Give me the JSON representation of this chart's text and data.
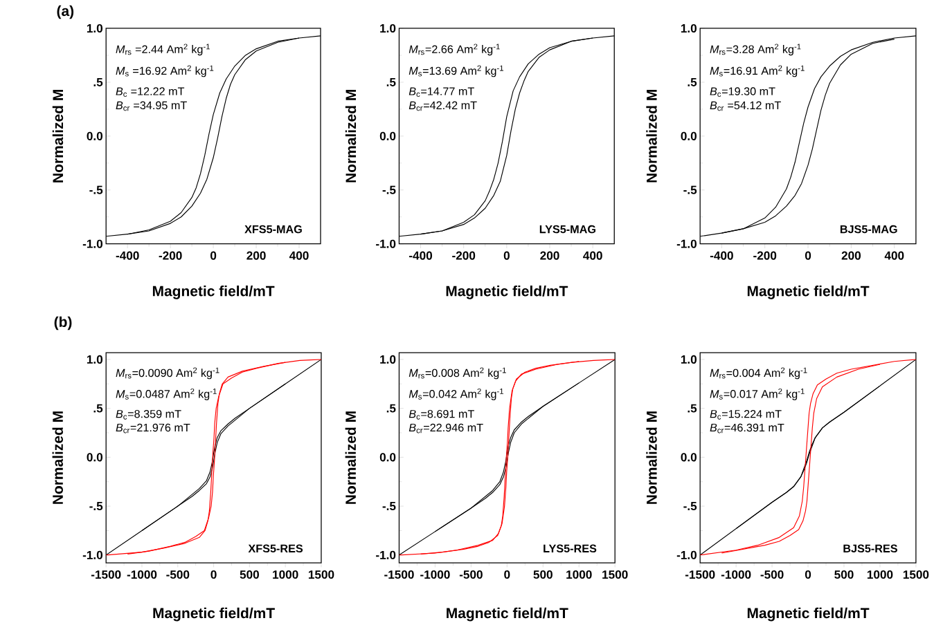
{
  "chart_data": [
    {
      "type": "line",
      "title": "(a)",
      "xlabel": "Magnetic field/mT",
      "ylabel": "Normalized M",
      "xlim": [
        -500,
        500
      ],
      "ylim": [
        -1,
        1
      ],
      "xticks": [
        -400,
        -200,
        0,
        200,
        400,
        {
          "value": -300,
          "label": null
        },
        {
          "value": -100,
          "label": null
        },
        {
          "value": 100,
          "label": null
        },
        {
          "value": 300,
          "label": null
        }
      ],
      "yticks": [
        {
          "value": -1,
          "label": "-1.0"
        },
        {
          "value": -0.5,
          "label": "-.5"
        },
        {
          "value": 0,
          "label": "0.0"
        },
        {
          "value": 0.5,
          "label": ".5"
        },
        {
          "value": 1,
          "label": "1.0"
        },
        {
          "value": -0.75,
          "label": null
        },
        {
          "value": -0.25,
          "label": null
        },
        {
          "value": 0.25,
          "label": null
        },
        {
          "value": 0.75,
          "label": null
        }
      ],
      "annotations": [
        "*M*$_{rs}$ =2.44 Am$^{2}$ kg$^{-1}$",
        "*M*$_{s}$ =16.92 Am$^{2}$ kg$^{-1}$",
        "*B*$_{c}$ =12.22 mT",
        "*B*$_{cr}$ =34.95 mT",
        "XFS5-MAG"
      ],
      "series": [
        {
          "color": "#000000",
          "x": [
            500,
            400,
            300,
            200,
            150,
            100,
            60,
            30,
            0,
            -20,
            -40,
            -60,
            -80,
            -100,
            -150,
            -200,
            -300,
            -400,
            -500
          ],
          "values": [
            0.93,
            0.91,
            0.88,
            0.81,
            0.75,
            0.65,
            0.53,
            0.4,
            0.2,
            0.02,
            -0.18,
            -0.35,
            -0.48,
            -0.57,
            -0.71,
            -0.79,
            -0.87,
            -0.91,
            -0.93
          ]
        },
        {
          "color": "#000000",
          "x": [
            -400,
            -300,
            -200,
            -150,
            -100,
            -60,
            -30,
            0,
            20,
            40,
            60,
            80,
            100,
            150,
            200,
            300,
            400
          ],
          "values": [
            -0.91,
            -0.88,
            -0.81,
            -0.75,
            -0.65,
            -0.53,
            -0.4,
            -0.2,
            -0.02,
            0.18,
            0.35,
            0.48,
            0.57,
            0.71,
            0.79,
            0.87,
            0.91
          ]
        }
      ]
    },
    {
      "type": "line",
      "xlabel": "Magnetic field/mT",
      "ylabel": "Normalized M",
      "xlim": [
        -500,
        500
      ],
      "ylim": [
        -1,
        1
      ],
      "xticks": [
        -400,
        -200,
        0,
        200,
        400,
        {
          "value": -300,
          "label": null
        },
        {
          "value": -100,
          "label": null
        },
        {
          "value": 100,
          "label": null
        },
        {
          "value": 300,
          "label": null
        }
      ],
      "yticks": [
        {
          "value": -1,
          "label": "-1.0"
        },
        {
          "value": -0.5,
          "label": "-.5"
        },
        {
          "value": 0,
          "label": "0.0"
        },
        {
          "value": 0.5,
          "label": ".5"
        },
        {
          "value": 1,
          "label": "1.0"
        },
        {
          "value": -0.75,
          "label": null
        },
        {
          "value": -0.25,
          "label": null
        },
        {
          "value": 0.25,
          "label": null
        },
        {
          "value": 0.75,
          "label": null
        }
      ],
      "annotations": [
        "*M*$_{rs}$=2.66 Am$^{2}$ kg$^{-1}$",
        "*M*$_{s}$=13.69 Am$^{2}$ kg$^{-1}$",
        "*B*$_{c}$=14.77 mT",
        "*B*$_{cr}$=42.42 mT",
        "LYS5-MAG"
      ],
      "series": [
        {
          "color": "#000000",
          "x": [
            500,
            400,
            300,
            200,
            150,
            100,
            60,
            30,
            0,
            -20,
            -40,
            -60,
            -80,
            -100,
            -150,
            -200,
            -300,
            -400,
            -500
          ],
          "values": [
            0.93,
            0.91,
            0.88,
            0.82,
            0.76,
            0.67,
            0.55,
            0.42,
            0.18,
            -0.05,
            -0.25,
            -0.4,
            -0.51,
            -0.6,
            -0.73,
            -0.8,
            -0.88,
            -0.91,
            -0.93
          ]
        },
        {
          "color": "#000000",
          "x": [
            -400,
            -300,
            -200,
            -150,
            -100,
            -60,
            -30,
            0,
            20,
            40,
            60,
            80,
            100,
            150,
            200,
            300,
            400
          ],
          "values": [
            -0.91,
            -0.88,
            -0.82,
            -0.76,
            -0.67,
            -0.55,
            -0.42,
            -0.18,
            0.05,
            0.25,
            0.4,
            0.51,
            0.6,
            0.73,
            0.8,
            0.88,
            0.91
          ]
        }
      ]
    },
    {
      "type": "line",
      "xlabel": "Magnetic field/mT",
      "ylabel": "Normalized M",
      "xlim": [
        -500,
        500
      ],
      "ylim": [
        -1,
        1
      ],
      "xticks": [
        -400,
        -200,
        0,
        200,
        400,
        {
          "value": -300,
          "label": null
        },
        {
          "value": -100,
          "label": null
        },
        {
          "value": 100,
          "label": null
        },
        {
          "value": 300,
          "label": null
        }
      ],
      "yticks": [
        {
          "value": -1,
          "label": "-1.0"
        },
        {
          "value": -0.5,
          "label": "-.5"
        },
        {
          "value": 0,
          "label": "0.0"
        },
        {
          "value": 0.5,
          "label": ".5"
        },
        {
          "value": 1,
          "label": "1.0"
        },
        {
          "value": -0.75,
          "label": null
        },
        {
          "value": -0.25,
          "label": null
        },
        {
          "value": 0.25,
          "label": null
        },
        {
          "value": 0.75,
          "label": null
        }
      ],
      "annotations": [
        "*M*$_{rs}$=3.28 Am$^{2}$ kg$^{-1}$",
        "*M*$_{s}$=16.91 Am$^{2}$ kg$^{-1}$",
        "*B*$_{c}$=19.30 mT",
        "*B*$_{cr}$ =54.12 mT",
        "BJS5-MAG"
      ],
      "series": [
        {
          "color": "#000000",
          "x": [
            500,
            400,
            300,
            200,
            150,
            100,
            60,
            30,
            0,
            -20,
            -40,
            -60,
            -80,
            -100,
            -150,
            -200,
            -300,
            -400,
            -500
          ],
          "values": [
            0.93,
            0.91,
            0.87,
            0.8,
            0.74,
            0.65,
            0.55,
            0.44,
            0.27,
            0.12,
            -0.06,
            -0.24,
            -0.38,
            -0.49,
            -0.66,
            -0.76,
            -0.86,
            -0.9,
            -0.93
          ]
        },
        {
          "color": "#000000",
          "x": [
            -400,
            -300,
            -200,
            -150,
            -100,
            -60,
            -30,
            0,
            20,
            40,
            60,
            80,
            100,
            150,
            200,
            300,
            400
          ],
          "values": [
            -0.9,
            -0.86,
            -0.8,
            -0.74,
            -0.65,
            -0.55,
            -0.44,
            -0.27,
            -0.12,
            0.06,
            0.24,
            0.38,
            0.49,
            0.66,
            0.76,
            0.86,
            0.9
          ]
        }
      ]
    },
    {
      "type": "line",
      "title": "(b)",
      "xlabel": "Magnetic field/mT",
      "ylabel": "Normalized M",
      "xlim": [
        -1500,
        1500
      ],
      "ylim": [
        -1.08,
        1.07
      ],
      "xticks": [
        -1500,
        -1000,
        -500,
        0,
        500,
        1000,
        1500,
        {
          "value": -1250,
          "label": null
        },
        {
          "value": -750,
          "label": null
        },
        {
          "value": -250,
          "label": null
        },
        {
          "value": 250,
          "label": null
        },
        {
          "value": 750,
          "label": null
        },
        {
          "value": 1250,
          "label": null
        }
      ],
      "yticks": [
        {
          "value": -1,
          "label": "-1.0"
        },
        {
          "value": -0.5,
          "label": "-.5"
        },
        {
          "value": 0,
          "label": "0.0"
        },
        {
          "value": 0.5,
          "label": ".5"
        },
        {
          "value": 1,
          "label": "1.0"
        },
        {
          "value": -0.75,
          "label": null
        },
        {
          "value": -0.25,
          "label": null
        },
        {
          "value": 0.25,
          "label": null
        },
        {
          "value": 0.75,
          "label": null
        }
      ],
      "annotations": [
        "*M*$_{rs}$=0.0090 Am$^{2}$ kg$^{-1}$",
        "*M*$_{s}$=0.0487 Am$^{2}$ kg$^{-1}$",
        "*B*$_{c}$=8.359 mT",
        "*B*$_{cr}$=21.976 mT",
        "XFS5-RES"
      ],
      "series": [
        {
          "color": "#000000",
          "x": [
            1500,
            1000,
            500,
            300,
            200,
            100,
            50,
            20,
            0,
            -20,
            -50,
            -100,
            -200,
            -300,
            -500,
            -1000,
            -1500
          ],
          "values": [
            1.0,
            0.75,
            0.5,
            0.4,
            0.34,
            0.27,
            0.2,
            0.12,
            0.04,
            -0.05,
            -0.15,
            -0.24,
            -0.32,
            -0.38,
            -0.5,
            -0.75,
            -1.0
          ]
        },
        {
          "color": "#000000",
          "x": [
            -1000,
            -500,
            -300,
            -200,
            -100,
            -50,
            -20,
            0,
            20,
            50,
            100,
            200,
            300,
            500,
            1000
          ],
          "values": [
            -0.75,
            -0.5,
            -0.4,
            -0.34,
            -0.27,
            -0.2,
            -0.12,
            -0.04,
            0.05,
            0.15,
            0.24,
            0.32,
            0.38,
            0.5,
            0.75
          ]
        },
        {
          "color": "#ff0000",
          "x": [
            1500,
            1200,
            900,
            600,
            400,
            250,
            130,
            70,
            35,
            15,
            5,
            -10,
            -25,
            -40,
            -60,
            -80,
            -120,
            -200,
            -400,
            -700,
            -1000,
            -1500
          ],
          "values": [
            1.0,
            0.99,
            0.96,
            0.91,
            0.87,
            0.81,
            0.75,
            0.62,
            0.5,
            0.35,
            0.2,
            0.05,
            -0.15,
            -0.35,
            -0.55,
            -0.65,
            -0.75,
            -0.82,
            -0.88,
            -0.93,
            -0.97,
            -1.0
          ]
        },
        {
          "color": "#ff0000",
          "x": [
            -1200,
            -900,
            -600,
            -400,
            -250,
            -130,
            -70,
            -35,
            -15,
            -5,
            10,
            25,
            40,
            60,
            80,
            120,
            200,
            400,
            700,
            1000
          ],
          "values": [
            -0.99,
            -0.96,
            -0.91,
            -0.87,
            -0.81,
            -0.75,
            -0.62,
            -0.5,
            -0.35,
            -0.2,
            -0.05,
            0.15,
            0.35,
            0.55,
            0.65,
            0.75,
            0.82,
            0.88,
            0.93,
            0.97
          ]
        }
      ]
    },
    {
      "type": "line",
      "xlabel": "Magnetic field/mT",
      "ylabel": "Normalized M",
      "xlim": [
        -1500,
        1500
      ],
      "ylim": [
        -1.08,
        1.07
      ],
      "xticks": [
        -1500,
        -1000,
        -500,
        0,
        500,
        1000,
        1500,
        {
          "value": -1250,
          "label": null
        },
        {
          "value": -750,
          "label": null
        },
        {
          "value": -250,
          "label": null
        },
        {
          "value": 250,
          "label": null
        },
        {
          "value": 750,
          "label": null
        },
        {
          "value": 1250,
          "label": null
        }
      ],
      "yticks": [
        {
          "value": -1,
          "label": "-1.0"
        },
        {
          "value": -0.5,
          "label": "-.5"
        },
        {
          "value": 0,
          "label": "0.0"
        },
        {
          "value": 0.5,
          "label": ".5"
        },
        {
          "value": 1,
          "label": "1.0"
        },
        {
          "value": -0.75,
          "label": null
        },
        {
          "value": -0.25,
          "label": null
        },
        {
          "value": 0.25,
          "label": null
        },
        {
          "value": 0.75,
          "label": null
        }
      ],
      "annotations": [
        "*M*$_{rs}$=0.008 Am$^{2}$ kg$^{-1}$",
        "*M*$_{s}$=0.042 Am$^{2}$ kg$^{-1}$",
        "*B*$_{c}$=8.691 mT",
        "*B*$_{cr}$=22.946 mT",
        "LYS5-RES"
      ],
      "series": [
        {
          "color": "#000000",
          "x": [
            1500,
            1000,
            500,
            300,
            200,
            100,
            50,
            20,
            0,
            -20,
            -50,
            -100,
            -200,
            -300,
            -500,
            -1000,
            -1500
          ],
          "values": [
            1.0,
            0.76,
            0.52,
            0.42,
            0.36,
            0.28,
            0.2,
            0.12,
            0.04,
            -0.05,
            -0.15,
            -0.25,
            -0.34,
            -0.4,
            -0.52,
            -0.76,
            -1.0
          ]
        },
        {
          "color": "#000000",
          "x": [
            -1000,
            -500,
            -300,
            -200,
            -100,
            -50,
            -20,
            0,
            20,
            50,
            100,
            200,
            300,
            500,
            1000
          ],
          "values": [
            -0.76,
            -0.52,
            -0.42,
            -0.36,
            -0.28,
            -0.2,
            -0.12,
            -0.04,
            0.05,
            0.15,
            0.25,
            0.34,
            0.4,
            0.52,
            0.76
          ]
        },
        {
          "color": "#ff0000",
          "x": [
            1500,
            1200,
            900,
            600,
            400,
            250,
            130,
            70,
            35,
            15,
            5,
            -10,
            -25,
            -40,
            -60,
            -80,
            -120,
            -200,
            -400,
            -700,
            -1000,
            -1500
          ],
          "values": [
            1.0,
            0.99,
            0.97,
            0.94,
            0.91,
            0.87,
            0.8,
            0.68,
            0.5,
            0.3,
            0.15,
            0.0,
            -0.2,
            -0.4,
            -0.6,
            -0.7,
            -0.78,
            -0.85,
            -0.9,
            -0.95,
            -0.98,
            -1.0
          ]
        },
        {
          "color": "#ff0000",
          "x": [
            -1200,
            -900,
            -600,
            -400,
            -250,
            -130,
            -70,
            -35,
            -15,
            -5,
            10,
            25,
            40,
            60,
            80,
            120,
            200,
            400,
            700,
            1000
          ],
          "values": [
            -0.99,
            -0.97,
            -0.94,
            -0.91,
            -0.87,
            -0.8,
            -0.68,
            -0.5,
            -0.3,
            -0.15,
            0.0,
            0.2,
            0.4,
            0.6,
            0.7,
            0.78,
            0.85,
            0.9,
            0.95,
            0.98
          ]
        }
      ]
    },
    {
      "type": "line",
      "xlabel": "Magnetic field/mT",
      "ylabel": "Normalized M",
      "xlim": [
        -1500,
        1500
      ],
      "ylim": [
        -1.08,
        1.07
      ],
      "xticks": [
        -1500,
        -1000,
        -500,
        0,
        500,
        1000,
        1500,
        {
          "value": -1250,
          "label": null
        },
        {
          "value": -750,
          "label": null
        },
        {
          "value": -250,
          "label": null
        },
        {
          "value": 250,
          "label": null
        },
        {
          "value": 750,
          "label": null
        },
        {
          "value": 1250,
          "label": null
        }
      ],
      "yticks": [
        {
          "value": -1,
          "label": "-1.0"
        },
        {
          "value": -0.5,
          "label": "-.5"
        },
        {
          "value": 0,
          "label": "0.0"
        },
        {
          "value": 0.5,
          "label": ".5"
        },
        {
          "value": 1,
          "label": "1.0"
        },
        {
          "value": -0.75,
          "label": null
        },
        {
          "value": -0.25,
          "label": null
        },
        {
          "value": 0.25,
          "label": null
        },
        {
          "value": 0.75,
          "label": null
        }
      ],
      "annotations": [
        "*M*$_{rs}$=0.004 Am$^{2}$ kg$^{-1}$",
        "*M*$_{s}$=0.017 Am$^{2}$ kg$^{-1}$",
        "*B*$_{c}$=15.224 mT",
        "*B*$_{cr}$=46.391 mT",
        "BJS5-RES"
      ],
      "series": [
        {
          "color": "#000000",
          "x": [
            1500,
            1000,
            500,
            300,
            200,
            100,
            50,
            20,
            0,
            -20,
            -50,
            -100,
            -200,
            -300,
            -500,
            -1000,
            -1500
          ],
          "values": [
            1.0,
            0.73,
            0.46,
            0.36,
            0.3,
            0.2,
            0.12,
            0.06,
            0.01,
            -0.04,
            -0.1,
            -0.2,
            -0.3,
            -0.36,
            -0.46,
            -0.73,
            -1.0
          ]
        },
        {
          "color": "#000000",
          "x": [
            -1000,
            -500,
            -300,
            -200,
            -100,
            -50,
            -20,
            0,
            20,
            50,
            100,
            200,
            300,
            500,
            1000
          ],
          "values": [
            -0.73,
            -0.46,
            -0.36,
            -0.3,
            -0.2,
            -0.12,
            -0.06,
            -0.01,
            0.04,
            0.1,
            0.2,
            0.3,
            0.36,
            0.46,
            0.73
          ]
        },
        {
          "color": "#ff0000",
          "x": [
            1500,
            1200,
            900,
            600,
            400,
            250,
            130,
            70,
            35,
            15,
            5,
            -10,
            -25,
            -40,
            -60,
            -80,
            -120,
            -200,
            -400,
            -700,
            -1000,
            -1500
          ],
          "values": [
            1.0,
            0.98,
            0.94,
            0.9,
            0.86,
            0.8,
            0.74,
            0.65,
            0.55,
            0.45,
            0.35,
            0.2,
            0.05,
            -0.1,
            -0.3,
            -0.45,
            -0.6,
            -0.72,
            -0.82,
            -0.9,
            -0.95,
            -1.0
          ]
        },
        {
          "color": "#ff0000",
          "x": [
            -1200,
            -900,
            -600,
            -400,
            -250,
            -130,
            -70,
            -35,
            -15,
            -5,
            10,
            25,
            40,
            60,
            80,
            120,
            200,
            400,
            700,
            1000
          ],
          "values": [
            -0.98,
            -0.94,
            -0.9,
            -0.86,
            -0.8,
            -0.74,
            -0.65,
            -0.55,
            -0.45,
            -0.35,
            -0.2,
            -0.05,
            0.1,
            0.3,
            0.45,
            0.6,
            0.72,
            0.82,
            0.9,
            0.95
          ]
        }
      ]
    }
  ]
}
